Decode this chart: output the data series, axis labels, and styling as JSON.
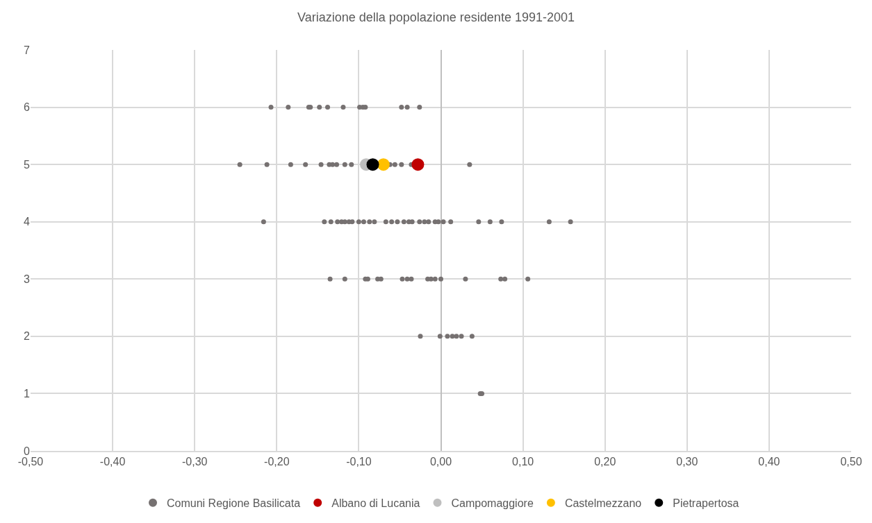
{
  "chart_data": {
    "type": "scatter",
    "title": "Variazione della popolazione residente 1991-2001",
    "xlim": [
      -0.5,
      0.5
    ],
    "xticks": [
      {
        "value": -0.5,
        "label": "-0,50"
      },
      {
        "value": -0.4,
        "label": "-0,40"
      },
      {
        "value": -0.3,
        "label": "-0,30"
      },
      {
        "value": -0.2,
        "label": "-0,20"
      },
      {
        "value": -0.1,
        "label": "-0,10"
      },
      {
        "value": 0,
        "label": "0,00"
      },
      {
        "value": 0.1,
        "label": "0,10"
      },
      {
        "value": 0.2,
        "label": "0,20"
      },
      {
        "value": 0.3,
        "label": "0,30"
      },
      {
        "value": 0.4,
        "label": "0,40"
      },
      {
        "value": 0.5,
        "label": "0,50"
      }
    ],
    "ylim": [
      0,
      7
    ],
    "yticks": [
      0,
      1,
      2,
      3,
      4,
      5,
      6,
      7
    ],
    "grid": true,
    "legend": "bottom",
    "marker": "circle",
    "series": [
      {
        "name": "Comuni Regione Basilicata",
        "color": "#767171",
        "x": [
          -0.207,
          -0.186,
          -0.161,
          -0.159,
          -0.148,
          -0.138,
          -0.119,
          -0.099,
          -0.095,
          -0.092,
          -0.048,
          -0.041,
          -0.026,
          -0.245,
          -0.212,
          -0.183,
          -0.165,
          -0.146,
          -0.136,
          -0.132,
          -0.127,
          -0.117,
          -0.109,
          -0.062,
          -0.056,
          -0.048,
          -0.036,
          0.035,
          -0.216,
          -0.142,
          -0.134,
          -0.126,
          -0.121,
          -0.117,
          -0.112,
          -0.108,
          -0.1,
          -0.094,
          -0.087,
          -0.081,
          -0.067,
          -0.06,
          -0.053,
          -0.045,
          -0.039,
          -0.035,
          -0.026,
          -0.02,
          -0.015,
          -0.007,
          -0.003,
          0.003,
          0.012,
          0.046,
          0.06,
          0.074,
          0.132,
          0.158,
          -0.135,
          -0.117,
          -0.092,
          -0.089,
          -0.077,
          -0.073,
          -0.047,
          -0.041,
          -0.036,
          -0.016,
          -0.012,
          -0.007,
          0.0,
          0.03,
          0.073,
          0.078,
          0.106,
          -0.025,
          -0.001,
          0.008,
          0.014,
          0.019,
          0.025,
          0.038,
          0.048,
          0.05
        ],
        "values": [
          6,
          6,
          6,
          6,
          6,
          6,
          6,
          6,
          6,
          6,
          6,
          6,
          6,
          5,
          5,
          5,
          5,
          5,
          5,
          5,
          5,
          5,
          5,
          5,
          5,
          5,
          5,
          5,
          4,
          4,
          4,
          4,
          4,
          4,
          4,
          4,
          4,
          4,
          4,
          4,
          4,
          4,
          4,
          4,
          4,
          4,
          4,
          4,
          4,
          4,
          4,
          4,
          4,
          4,
          4,
          4,
          4,
          4,
          3,
          3,
          3,
          3,
          3,
          3,
          3,
          3,
          3,
          3,
          3,
          3,
          3,
          3,
          3,
          3,
          3,
          2,
          2,
          2,
          2,
          2,
          2,
          2,
          1,
          1
        ]
      },
      {
        "name": "Albano di Lucania",
        "color": "#c00000",
        "x": [
          -0.028
        ],
        "values": [
          5
        ]
      },
      {
        "name": "Campomaggiore",
        "color": "#bfbfbf",
        "x": [
          -0.091
        ],
        "values": [
          5
        ]
      },
      {
        "name": "Castelmezzano",
        "color": "#ffc000",
        "x": [
          -0.07
        ],
        "values": [
          5
        ]
      },
      {
        "name": "Pietrapertosa",
        "color": "#000000",
        "x": [
          -0.083
        ],
        "values": [
          5
        ]
      }
    ]
  }
}
